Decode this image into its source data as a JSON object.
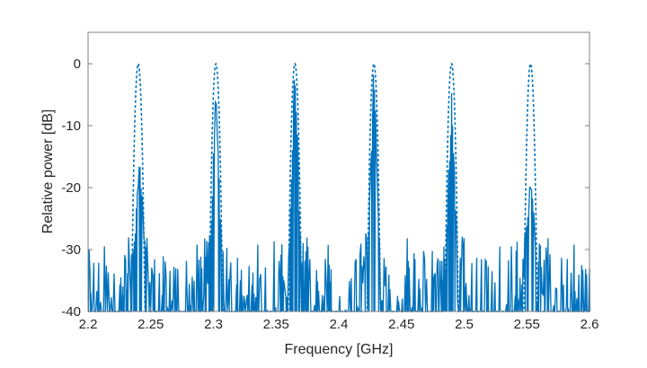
{
  "chart_data": {
    "type": "line",
    "title": "",
    "xlabel": "Frequency [GHz]",
    "ylabel": "Relative power [dB]",
    "xlim": [
      2.2,
      2.6
    ],
    "ylim": [
      -40,
      5
    ],
    "xticks": [
      "2.2",
      "2.25",
      "2.3",
      "2.35",
      "2.4",
      "2.45",
      "2.5",
      "2.55",
      "2.6"
    ],
    "yticks": [
      "0",
      "-10",
      "-20",
      "-30",
      "-40"
    ],
    "grid": false,
    "legend": null,
    "line_color": "#0072BD",
    "series": [
      {
        "name": "dashed (reference spectrum)",
        "style": "dashed",
        "peaks": [
          {
            "x": 2.24,
            "y": 0
          },
          {
            "x": 2.302,
            "y": 0
          },
          {
            "x": 2.365,
            "y": 0
          },
          {
            "x": 2.428,
            "y": 0
          },
          {
            "x": 2.49,
            "y": 0
          },
          {
            "x": 2.553,
            "y": 0
          }
        ],
        "peak_width_ghz": 0.012
      },
      {
        "name": "solid (measured spectrum)",
        "style": "solid",
        "peaks": [
          {
            "x": 2.241,
            "y": -16
          },
          {
            "x": 2.302,
            "y": -4
          },
          {
            "x": 2.365,
            "y": 0
          },
          {
            "x": 2.428,
            "y": -1
          },
          {
            "x": 2.49,
            "y": -6
          },
          {
            "x": 2.553,
            "y": -19
          }
        ],
        "noise_floor": [
          -40,
          -28
        ]
      }
    ]
  }
}
